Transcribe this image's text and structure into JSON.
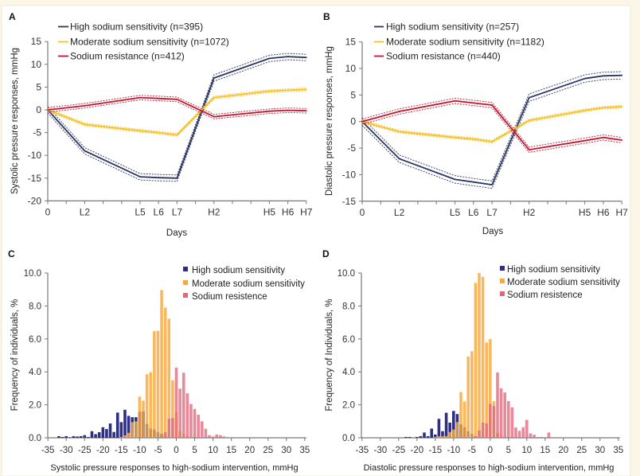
{
  "chart_data": [
    {
      "panel_label": "A",
      "type": "line",
      "title": "",
      "xlabel": "Days",
      "ylabel": "Systolic pressure responses, mmHg",
      "x_range_days": [
        0,
        14
      ],
      "xtick_labels": [
        "0",
        "",
        "L2",
        "",
        "",
        "L5",
        "L6",
        "L7",
        "",
        "H2",
        "",
        "",
        "H5",
        "H6",
        "H7"
      ],
      "x": [
        "0",
        "L2",
        "L5",
        "L6",
        "L7",
        "H2",
        "H5",
        "H6",
        "H7"
      ],
      "x_day_index": [
        0,
        2,
        5,
        6,
        7,
        9,
        12,
        13,
        14
      ],
      "ylim": [
        -20,
        15
      ],
      "yticks": [
        15,
        10,
        5,
        0,
        -5,
        -10,
        -15,
        -20
      ],
      "legend": "top-left",
      "grid": false,
      "series": [
        {
          "name": "High sodium sensitivity (n=395)",
          "color": "#2b3563",
          "ci_halfwidth": 0.7,
          "values": [
            0,
            -9.0,
            -14.7,
            -14.9,
            -15.0,
            7.0,
            11.3,
            11.7,
            11.5
          ]
        },
        {
          "name": "Moderate sodium sensitivity (n=1072)",
          "color": "#f5c12a",
          "ci_halfwidth": 0.3,
          "values": [
            0,
            -3.2,
            -4.6,
            -5.0,
            -5.5,
            2.7,
            4.1,
            4.3,
            4.5
          ]
        },
        {
          "name": "Sodium resistance (n=412)",
          "color": "#c3172f",
          "ci_halfwidth": 0.5,
          "values": [
            0,
            0.9,
            2.7,
            2.5,
            2.3,
            -1.5,
            -0.3,
            -0.1,
            -0.2
          ]
        }
      ]
    },
    {
      "panel_label": "B",
      "type": "line",
      "title": "",
      "xlabel": "Days",
      "ylabel": "Diastolic pressure responses, mmHg",
      "x_range_days": [
        0,
        14
      ],
      "xtick_labels": [
        "0",
        "",
        "L2",
        "",
        "",
        "L5",
        "L6",
        "L7",
        "",
        "H2",
        "",
        "",
        "H5",
        "H6",
        "H7"
      ],
      "x": [
        "0",
        "L2",
        "L5",
        "L6",
        "L7",
        "H2",
        "H5",
        "H6",
        "H7"
      ],
      "x_day_index": [
        0,
        2,
        5,
        6,
        7,
        9,
        12,
        13,
        14
      ],
      "ylim": [
        -15,
        15
      ],
      "yticks": [
        15,
        10,
        5,
        0,
        -5,
        -10,
        -15
      ],
      "legend": "top-left",
      "grid": false,
      "series": [
        {
          "name": "High sodium sensitivity (n=257)",
          "color": "#2b3563",
          "ci_halfwidth": 0.7,
          "values": [
            0,
            -7.0,
            -10.9,
            -11.4,
            -11.9,
            4.5,
            8.1,
            8.6,
            8.7
          ]
        },
        {
          "name": "Moderate sodium sensitivity (n=1182)",
          "color": "#f5c12a",
          "ci_halfwidth": 0.25,
          "values": [
            0,
            -1.9,
            -3.0,
            -3.3,
            -3.8,
            0.2,
            2.1,
            2.6,
            2.8
          ]
        },
        {
          "name": "Sodium resistance (n=440)",
          "color": "#c3172f",
          "ci_halfwidth": 0.5,
          "values": [
            0,
            1.9,
            3.9,
            3.5,
            3.1,
            -5.3,
            -3.6,
            -3.0,
            -3.5
          ]
        }
      ]
    },
    {
      "panel_label": "C",
      "type": "bar",
      "subtype": "histogram",
      "title": "",
      "xlabel": "Systolic pressure responses to high-sodium intervention, mmHg",
      "ylabel": "Frequency of individuals, %",
      "xlim": [
        -35,
        35
      ],
      "xticks": [
        -35,
        -30,
        -25,
        -20,
        -15,
        -10,
        -5,
        0,
        5,
        10,
        15,
        20,
        25,
        30,
        35
      ],
      "ylim": [
        0,
        10
      ],
      "yticks": [
        "0.0",
        "2.0",
        "4.0",
        "6.0",
        "8.0",
        "10.0"
      ],
      "bin_width": 1,
      "legend": "top-right",
      "grid": false,
      "series": [
        {
          "name": "High sodium sensitivity",
          "color": "#2d2f86",
          "bin_start": -33,
          "values": [
            0.0,
            0.1,
            0.05,
            0.1,
            0.03,
            0.1,
            0.08,
            0.1,
            0.16,
            0.05,
            0.4,
            0.22,
            0.34,
            0.64,
            0.53,
            0.87,
            0.35,
            1.53,
            0.95,
            1.7,
            1.33,
            1.25,
            1.25,
            1.58,
            1.6,
            0.84,
            0.56,
            0.5,
            0.35,
            0.24,
            0.1
          ]
        },
        {
          "name": "Moderate sodium sensitivity",
          "color": "#f9a83a",
          "bin_start": -15,
          "values": [
            0.05,
            0.15,
            0.3,
            0.95,
            1.0,
            2.49,
            2.25,
            3.86,
            3.98,
            6.47,
            6.5,
            8.96,
            7.9,
            7.23,
            3.49,
            1.55,
            0.4,
            0.25,
            0.1,
            0.05
          ]
        },
        {
          "name": "Sodium resistence",
          "color": "#e0687b",
          "bin_start": -4,
          "values": [
            0.05,
            0.34,
            1.16,
            1.2,
            4.26,
            2.98,
            3.95,
            2.7,
            2.05,
            1.75,
            1.4,
            1.0,
            0.55,
            0.16,
            0.08,
            0.2,
            0.16,
            0.08
          ]
        }
      ]
    },
    {
      "panel_label": "D",
      "type": "bar",
      "subtype": "histogram",
      "title": "",
      "xlabel": "Diastolic pressure responses to high-sodium intervention, mmHg",
      "ylabel": "Frequency of Individuals, %",
      "xlim": [
        -35,
        35
      ],
      "xticks": [
        -35,
        -30,
        -25,
        -20,
        -15,
        -10,
        -5,
        0,
        5,
        10,
        15,
        20,
        25,
        30,
        35
      ],
      "ylim": [
        0,
        10
      ],
      "yticks": [
        "0.0",
        "2.0",
        "4.0",
        "6.0",
        "8.0",
        "10.0"
      ],
      "bin_width": 1,
      "legend": "top-right",
      "grid": false,
      "series": [
        {
          "name": "High sodium sensitivity",
          "color": "#2d2f86",
          "bin_start": -23,
          "values": [
            0.05,
            0.05,
            0.0,
            0.05,
            0.1,
            0.32,
            0.1,
            0.56,
            0.2,
            1.15,
            0.4,
            1.52,
            0.92,
            1.63,
            1.44,
            0.83,
            0.64,
            0.4,
            0.24,
            0.1
          ]
        },
        {
          "name": "Moderate sodium sensitivity",
          "color": "#f9a83a",
          "bin_start": -15,
          "values": [
            0.05,
            0.1,
            0.1,
            0.1,
            0.35,
            0.5,
            0.95,
            2.78,
            2.2,
            4.93,
            5.25,
            9.4,
            10.0,
            9.77,
            5.78,
            5.99,
            2.22,
            0.3,
            0.1
          ]
        },
        {
          "name": "Sodium resistence",
          "color": "#e0687b",
          "bin_start": -4,
          "values": [
            0.1,
            0.45,
            0.93,
            0.87,
            2.05,
            1.93,
            3.96,
            3.0,
            2.75,
            2.22,
            1.85,
            0.62,
            0.42,
            0.64,
            1.09,
            0.27,
            0.19,
            0.05,
            0.05,
            0.0,
            0.32,
            0.0,
            0.03
          ]
        }
      ]
    }
  ]
}
